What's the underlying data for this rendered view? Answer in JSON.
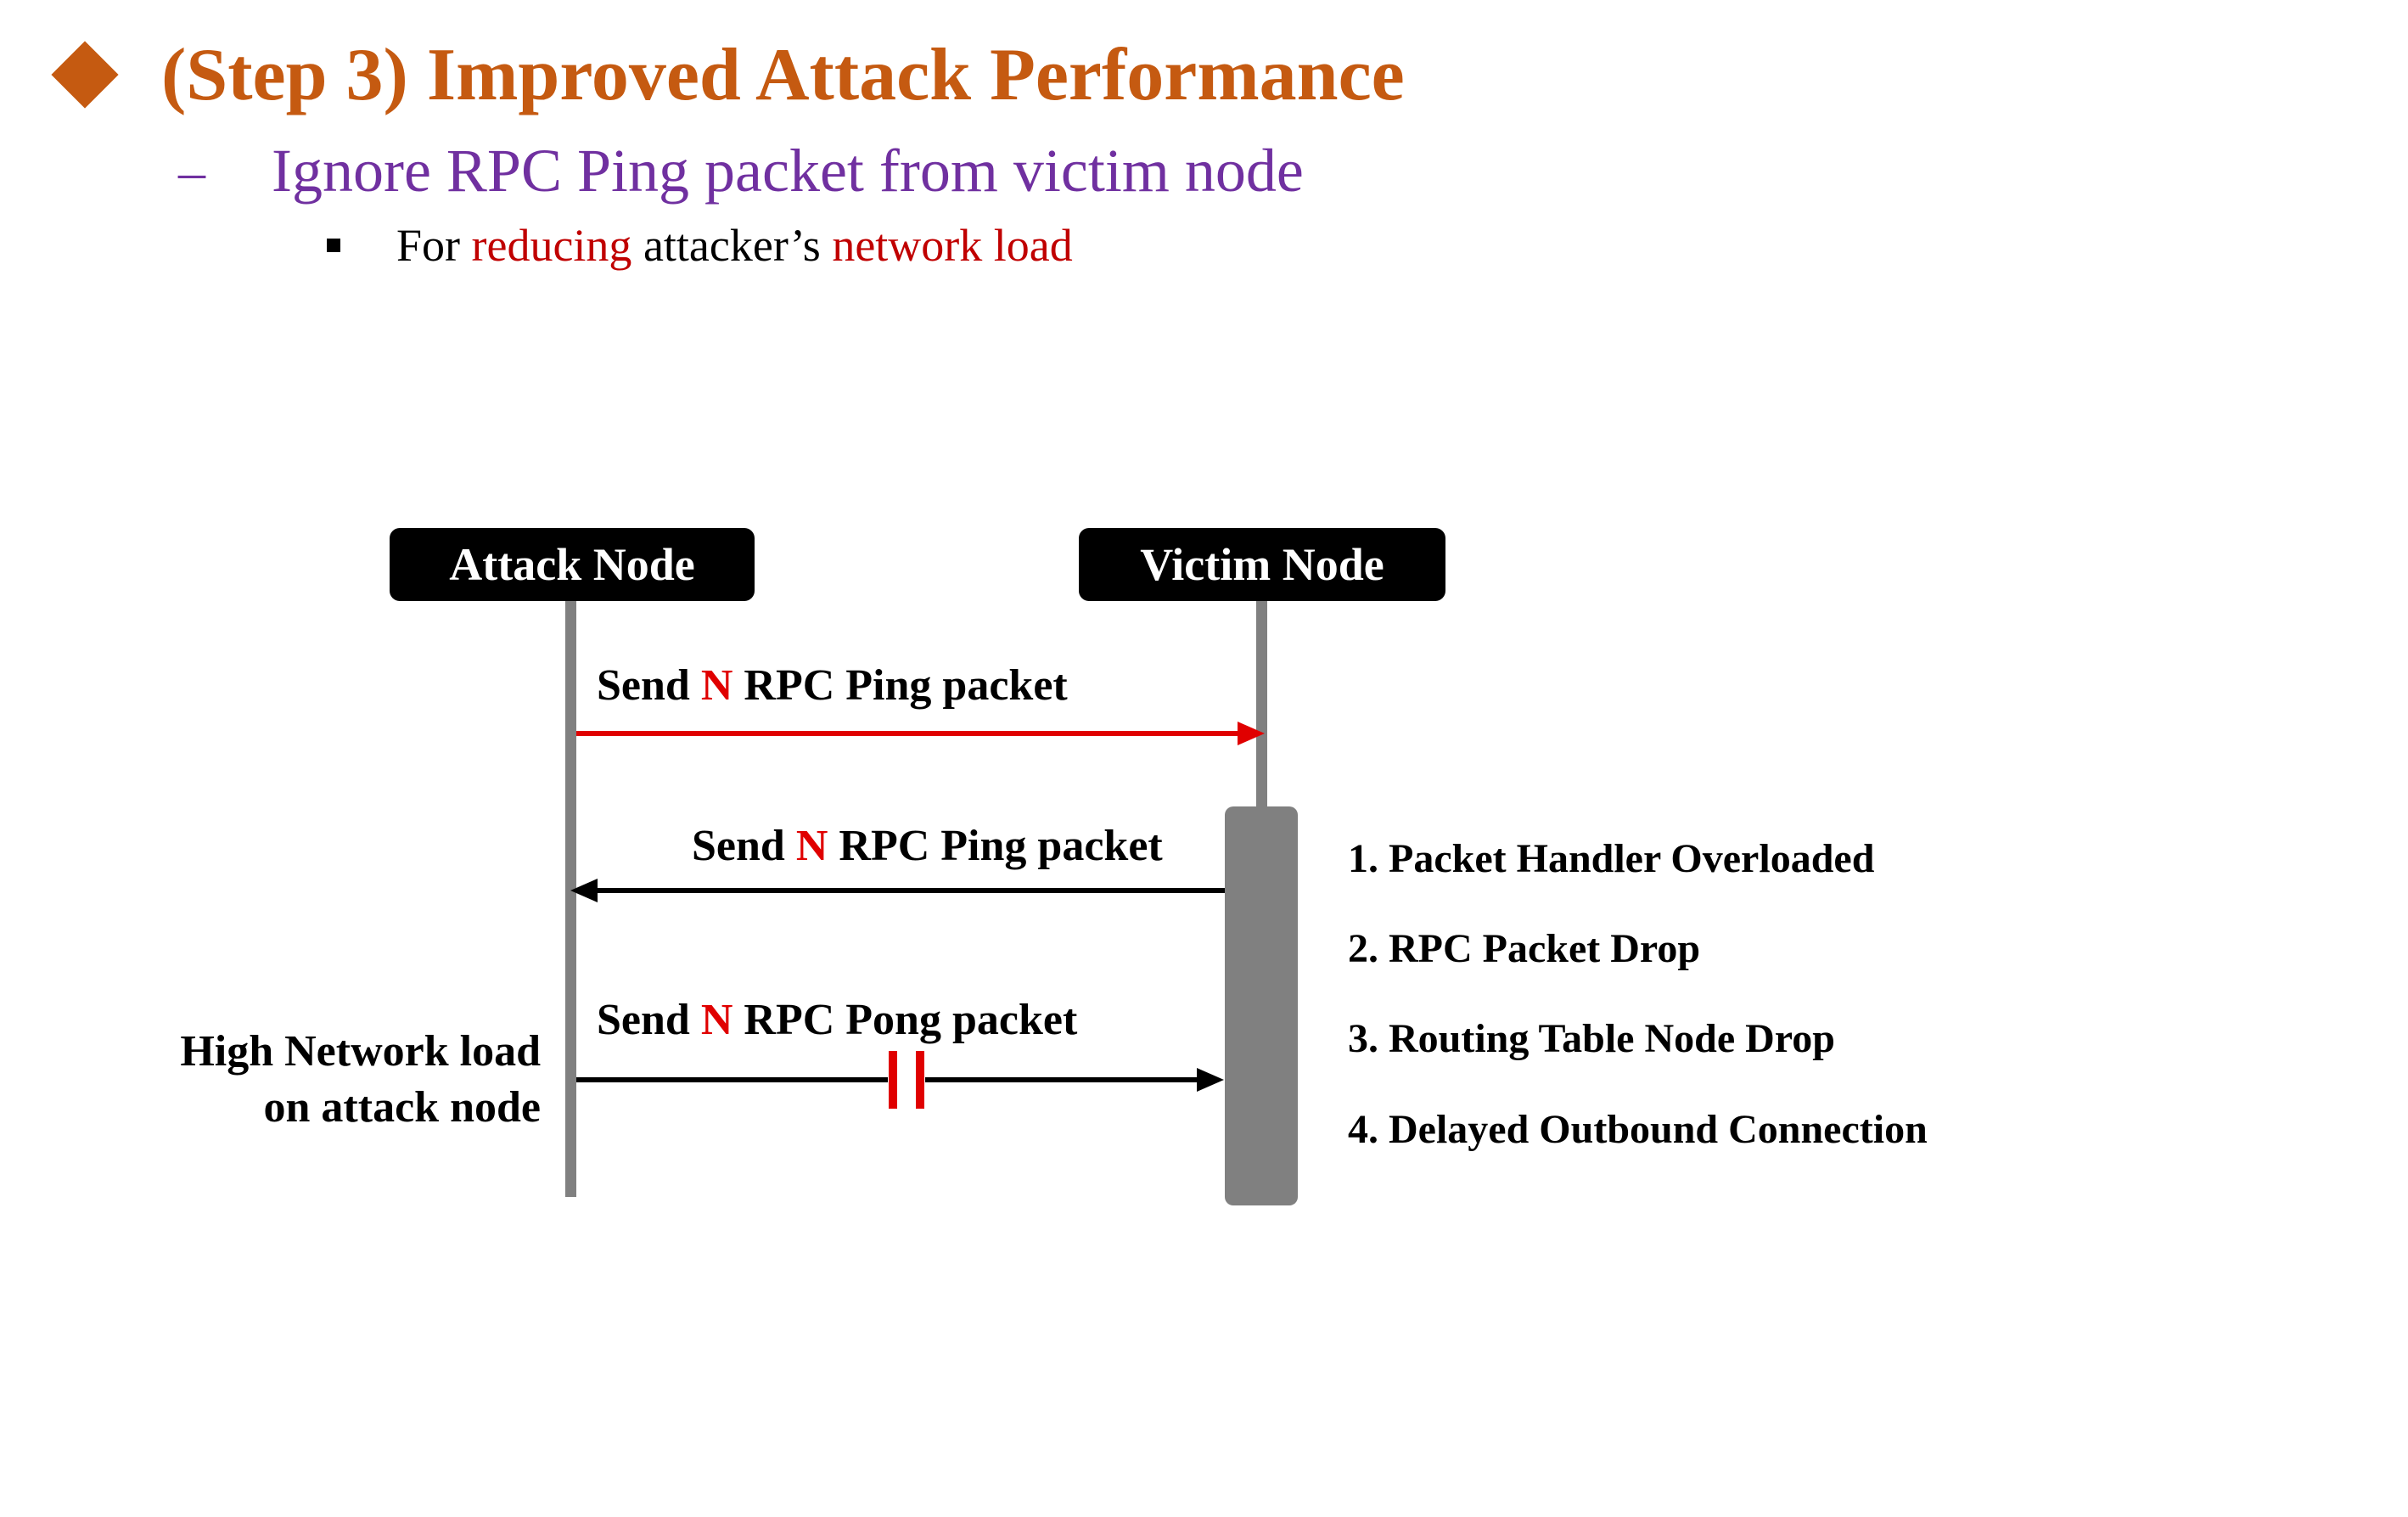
{
  "header": {
    "title": "(Step 3) Improved Attack Performance",
    "subtitle_marker": "–",
    "subtitle": "Ignore RPC Ping packet from victim node",
    "bullet": {
      "prefix": "For ",
      "highlight1": "reducing",
      "middle": " attacker’s ",
      "highlight2": "network load"
    }
  },
  "diagram": {
    "attack_node": "Attack Node",
    "victim_node": "Victim Node",
    "messages": [
      {
        "prefix": "Send ",
        "n": "N",
        "suffix": " RPC Ping packet",
        "direction": "attack-to-victim",
        "color": "#E00000"
      },
      {
        "prefix": "Send ",
        "n": "N",
        "suffix": " RPC Ping packet",
        "direction": "victim-to-attack",
        "color": "#000000"
      },
      {
        "prefix": "Send ",
        "n": "N",
        "suffix": " RPC Pong packet",
        "direction": "attack-to-victim",
        "color": "#000000",
        "blocked": true
      }
    ],
    "load_label": {
      "line1": "High Network load",
      "line2": "on attack node"
    },
    "effects": [
      "1. Packet Handler Overloaded",
      "2. RPC Packet Drop",
      "3. Routing Table Node Drop",
      "4. Delayed Outbound Connection"
    ]
  },
  "colors": {
    "title": "#C55A11",
    "subtitle": "#7030A0",
    "highlight": "#C00000",
    "lifeline": "#808080",
    "red_arrow": "#E00000",
    "block_mark": "#E00000"
  }
}
